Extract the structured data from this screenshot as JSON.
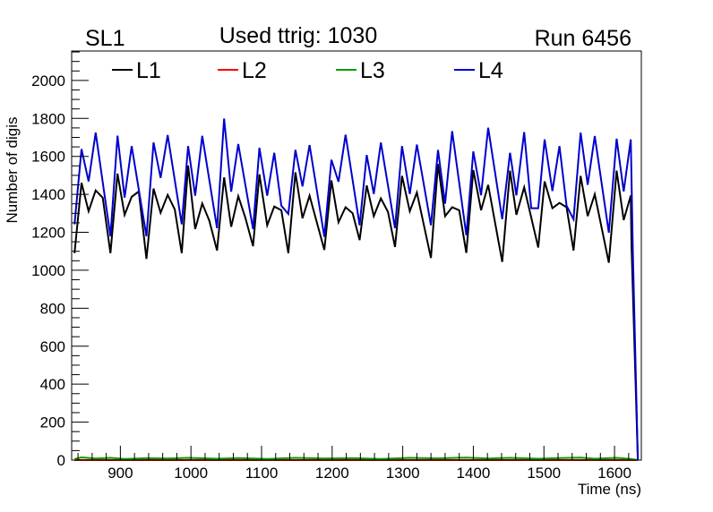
{
  "chart_data": {
    "type": "line",
    "title_left": "SL1",
    "title": "Used ttrig: 1030",
    "title_right": "Run 6456",
    "xlabel": "Time (ns)",
    "ylabel": "Number of digis",
    "xlim": [
      831,
      1638
    ],
    "ylim": [
      0,
      2155
    ],
    "xticks": [
      900,
      1000,
      1100,
      1200,
      1300,
      1400,
      1500,
      1600
    ],
    "xtick_labels": [
      "900",
      "1000",
      "1100",
      "1200",
      "1300",
      "1400",
      "1500",
      "1600"
    ],
    "yticks": [
      0,
      200,
      400,
      600,
      800,
      1000,
      1200,
      1400,
      1600,
      1800,
      2000
    ],
    "ytick_labels": [
      "0",
      "200",
      "400",
      "600",
      "800",
      "1000",
      "1200",
      "1400",
      "1600",
      "1800",
      "2000"
    ],
    "grid": false,
    "legend_position": "top",
    "series": [
      {
        "name": "L1",
        "color": "#000000",
        "points": [
          [
            835,
            1090
          ],
          [
            845,
            1461
          ],
          [
            855,
            1311
          ],
          [
            865,
            1421
          ],
          [
            875,
            1382
          ],
          [
            886,
            1090
          ],
          [
            896,
            1509
          ],
          [
            906,
            1292
          ],
          [
            916,
            1387
          ],
          [
            926,
            1415
          ],
          [
            937,
            1060
          ],
          [
            947,
            1430
          ],
          [
            957,
            1303
          ],
          [
            967,
            1397
          ],
          [
            977,
            1321
          ],
          [
            987,
            1090
          ],
          [
            996,
            1552
          ],
          [
            1006,
            1217
          ],
          [
            1016,
            1352
          ],
          [
            1026,
            1261
          ],
          [
            1037,
            1104
          ],
          [
            1047,
            1489
          ],
          [
            1057,
            1229
          ],
          [
            1067,
            1390
          ],
          [
            1077,
            1277
          ],
          [
            1088,
            1127
          ],
          [
            1097,
            1505
          ],
          [
            1108,
            1237
          ],
          [
            1118,
            1336
          ],
          [
            1128,
            1316
          ],
          [
            1138,
            1090
          ],
          [
            1148,
            1516
          ],
          [
            1158,
            1274
          ],
          [
            1168,
            1393
          ],
          [
            1189,
            1107
          ],
          [
            1199,
            1473
          ],
          [
            1209,
            1253
          ],
          [
            1219,
            1332
          ],
          [
            1229,
            1300
          ],
          [
            1239,
            1159
          ],
          [
            1249,
            1447
          ],
          [
            1259,
            1285
          ],
          [
            1269,
            1379
          ],
          [
            1279,
            1308
          ],
          [
            1289,
            1123
          ],
          [
            1299,
            1497
          ],
          [
            1310,
            1311
          ],
          [
            1320,
            1410
          ],
          [
            1340,
            1065
          ],
          [
            1350,
            1560
          ],
          [
            1360,
            1285
          ],
          [
            1370,
            1332
          ],
          [
            1380,
            1316
          ],
          [
            1390,
            1091
          ],
          [
            1400,
            1528
          ],
          [
            1411,
            1316
          ],
          [
            1421,
            1450
          ],
          [
            1441,
            1044
          ],
          [
            1452,
            1525
          ],
          [
            1461,
            1292
          ],
          [
            1472,
            1437
          ],
          [
            1492,
            1120
          ],
          [
            1501,
            1468
          ],
          [
            1512,
            1327
          ],
          [
            1522,
            1355
          ],
          [
            1532,
            1332
          ],
          [
            1542,
            1104
          ],
          [
            1552,
            1497
          ],
          [
            1562,
            1285
          ],
          [
            1572,
            1400
          ],
          [
            1592,
            1040
          ],
          [
            1603,
            1525
          ],
          [
            1613,
            1264
          ],
          [
            1623,
            1394
          ],
          [
            1624,
            1137
          ],
          [
            1633,
            0
          ]
        ]
      },
      {
        "name": "L2",
        "color": "#ff0000",
        "points": [
          [
            835,
            0
          ],
          [
            1633,
            0
          ]
        ]
      },
      {
        "name": "L3",
        "color": "#00a000",
        "points": [
          [
            835,
            5
          ],
          [
            845,
            14
          ],
          [
            865,
            8
          ],
          [
            886,
            12
          ],
          [
            906,
            6
          ],
          [
            937,
            10
          ],
          [
            967,
            8
          ],
          [
            996,
            12
          ],
          [
            1037,
            7
          ],
          [
            1067,
            11
          ],
          [
            1108,
            6
          ],
          [
            1148,
            12
          ],
          [
            1189,
            8
          ],
          [
            1229,
            10
          ],
          [
            1269,
            6
          ],
          [
            1310,
            12
          ],
          [
            1350,
            9
          ],
          [
            1390,
            13
          ],
          [
            1421,
            8
          ],
          [
            1452,
            12
          ],
          [
            1492,
            7
          ],
          [
            1522,
            11
          ],
          [
            1552,
            13
          ],
          [
            1572,
            7
          ],
          [
            1603,
            12
          ],
          [
            1623,
            6
          ],
          [
            1633,
            0
          ]
        ]
      },
      {
        "name": "L4",
        "color": "#0000cc",
        "points": [
          [
            835,
            1242
          ],
          [
            845,
            1638
          ],
          [
            855,
            1468
          ],
          [
            865,
            1725
          ],
          [
            886,
            1179
          ],
          [
            896,
            1709
          ],
          [
            906,
            1383
          ],
          [
            916,
            1654
          ],
          [
            937,
            1179
          ],
          [
            947,
            1673
          ],
          [
            957,
            1487
          ],
          [
            967,
            1712
          ],
          [
            987,
            1242
          ],
          [
            996,
            1654
          ],
          [
            1006,
            1393
          ],
          [
            1016,
            1708
          ],
          [
            1037,
            1222
          ],
          [
            1047,
            1799
          ],
          [
            1057,
            1414
          ],
          [
            1067,
            1665
          ],
          [
            1088,
            1217
          ],
          [
            1097,
            1645
          ],
          [
            1108,
            1393
          ],
          [
            1118,
            1619
          ],
          [
            1128,
            1340
          ],
          [
            1138,
            1297
          ],
          [
            1148,
            1634
          ],
          [
            1158,
            1442
          ],
          [
            1168,
            1660
          ],
          [
            1189,
            1176
          ],
          [
            1199,
            1582
          ],
          [
            1209,
            1466
          ],
          [
            1219,
            1714
          ],
          [
            1239,
            1237
          ],
          [
            1249,
            1607
          ],
          [
            1259,
            1402
          ],
          [
            1269,
            1673
          ],
          [
            1289,
            1222
          ],
          [
            1299,
            1654
          ],
          [
            1310,
            1402
          ],
          [
            1320,
            1662
          ],
          [
            1340,
            1237
          ],
          [
            1350,
            1634
          ],
          [
            1360,
            1351
          ],
          [
            1370,
            1733
          ],
          [
            1390,
            1185
          ],
          [
            1400,
            1626
          ],
          [
            1411,
            1395
          ],
          [
            1421,
            1751
          ],
          [
            1441,
            1269
          ],
          [
            1452,
            1619
          ],
          [
            1461,
            1395
          ],
          [
            1472,
            1728
          ],
          [
            1482,
            1327
          ],
          [
            1492,
            1327
          ],
          [
            1501,
            1689
          ],
          [
            1512,
            1418
          ],
          [
            1522,
            1654
          ],
          [
            1532,
            1340
          ],
          [
            1542,
            1269
          ],
          [
            1552,
            1725
          ],
          [
            1562,
            1450
          ],
          [
            1572,
            1707
          ],
          [
            1592,
            1198
          ],
          [
            1603,
            1693
          ],
          [
            1613,
            1415
          ],
          [
            1623,
            1689
          ],
          [
            1626,
            1100
          ],
          [
            1633,
            0
          ]
        ]
      }
    ]
  }
}
